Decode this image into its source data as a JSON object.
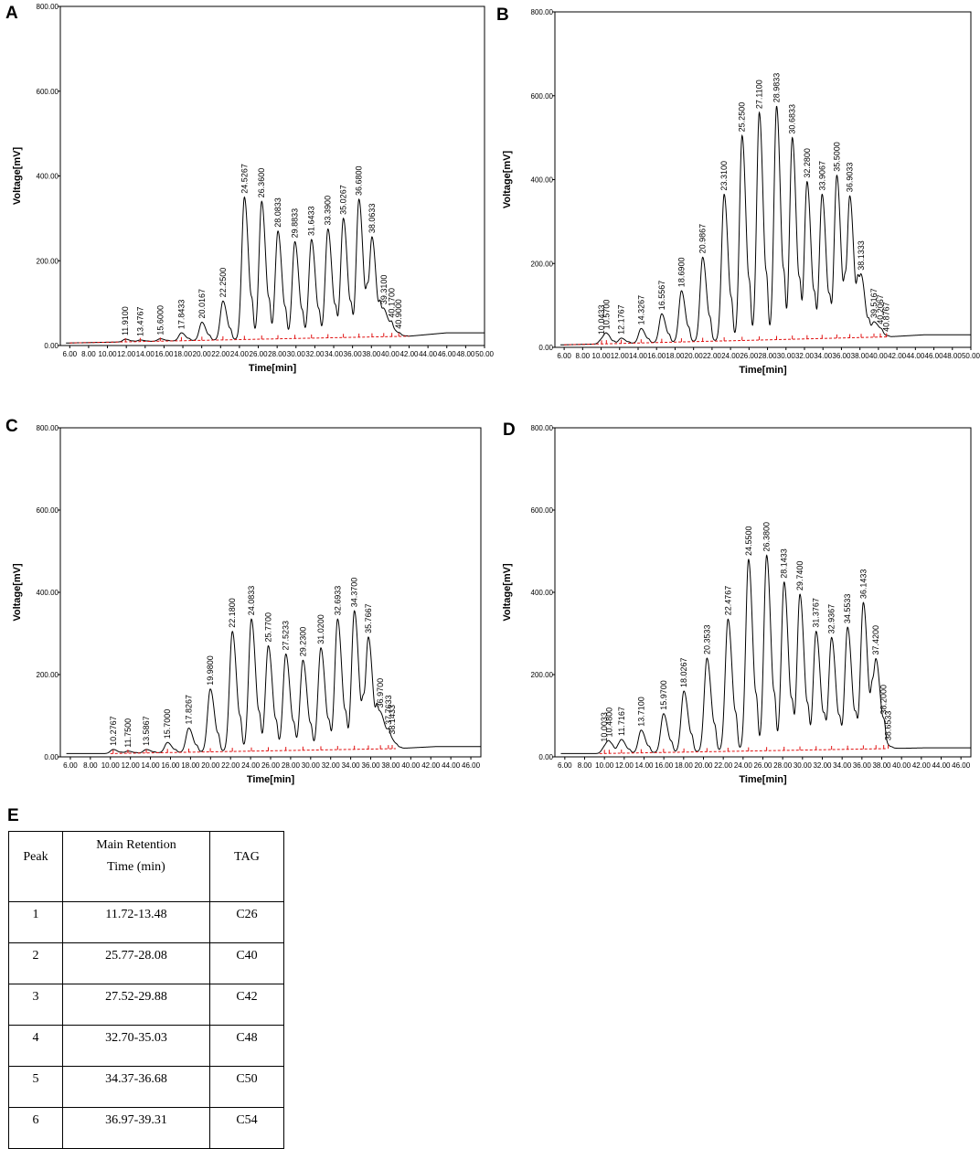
{
  "panels": [
    {
      "letter": "A"
    },
    {
      "letter": "B"
    },
    {
      "letter": "C"
    },
    {
      "letter": "D"
    }
  ],
  "chart_data": [
    {
      "type": "line",
      "panel": "A",
      "xlabel": "Time[min]",
      "ylabel": "Voltage[mV]",
      "xlim": [
        5,
        50
      ],
      "ylim": [
        0,
        800
      ],
      "xticks": [
        "6.00",
        "8.00",
        "10.00",
        "12.00",
        "14.00",
        "16.00",
        "18.00",
        "20.00",
        "22.00",
        "24.00",
        "26.00",
        "28.00",
        "30.00",
        "32.00",
        "34.00",
        "36.00",
        "38.00",
        "40.00",
        "42.00",
        "44.00",
        "46.00",
        "48.00",
        "50.00"
      ],
      "xtick_values": [
        6,
        8,
        10,
        12,
        14,
        16,
        18,
        20,
        22,
        24,
        26,
        28,
        30,
        32,
        34,
        36,
        38,
        40,
        42,
        44,
        46,
        48,
        50
      ],
      "yticks": [
        "0.00",
        "200.00",
        "400.00",
        "600.00",
        "800.00"
      ],
      "ytick_values": [
        0,
        200,
        400,
        600,
        800
      ],
      "baseline": {
        "start": 6,
        "end": 42,
        "level_start": 6,
        "level_end": 22,
        "tail_level": 30
      },
      "peaks": [
        {
          "t": 11.91,
          "h": 15,
          "label": "11.9100"
        },
        {
          "t": 13.4767,
          "h": 13,
          "label": "13.4767"
        },
        {
          "t": 15.6,
          "h": 16,
          "label": "15.6000"
        },
        {
          "t": 17.8433,
          "h": 30,
          "label": "17.8433"
        },
        {
          "t": 20.0167,
          "h": 55,
          "label": "20.0167"
        },
        {
          "t": 22.25,
          "h": 105,
          "label": "22.2500"
        },
        {
          "t": 24.5267,
          "h": 350,
          "label": "24.5267"
        },
        {
          "t": 26.36,
          "h": 340,
          "label": "26.3600"
        },
        {
          "t": 28.0833,
          "h": 270,
          "label": "28.0833"
        },
        {
          "t": 29.8833,
          "h": 245,
          "label": "29.8833"
        },
        {
          "t": 31.6433,
          "h": 250,
          "label": "31.6433"
        },
        {
          "t": 33.39,
          "h": 275,
          "label": "33.3900"
        },
        {
          "t": 35.0267,
          "h": 300,
          "label": "35.0267"
        },
        {
          "t": 36.68,
          "h": 345,
          "label": "36.6800"
        },
        {
          "t": 38.0633,
          "h": 255,
          "label": "38.0633"
        },
        {
          "t": 39.31,
          "h": 85,
          "label": "39.3100"
        },
        {
          "t": 40.17,
          "h": 40,
          "label": "40.1700"
        },
        {
          "t": 40.9,
          "h": 25,
          "label": "40.9000"
        }
      ]
    },
    {
      "type": "line",
      "panel": "B",
      "xlabel": "Time[min]",
      "ylabel": "Voltage[mV]",
      "xlim": [
        5,
        50
      ],
      "ylim": [
        0,
        800
      ],
      "xticks": [
        "6.00",
        "8.00",
        "10.00",
        "12.00",
        "14.00",
        "16.00",
        "18.00",
        "20.00",
        "22.00",
        "24.00",
        "26.00",
        "28.00",
        "30.00",
        "32.00",
        "34.00",
        "36.00",
        "38.00",
        "40.00",
        "42.00",
        "44.00",
        "46.00",
        "48.00",
        "50.00"
      ],
      "xtick_values": [
        6,
        8,
        10,
        12,
        14,
        16,
        18,
        20,
        22,
        24,
        26,
        28,
        30,
        32,
        34,
        36,
        38,
        40,
        42,
        44,
        46,
        48,
        50
      ],
      "yticks": [
        "0.00",
        "200.00",
        "400.00",
        "600.00",
        "800.00"
      ],
      "ytick_values": [
        0,
        200,
        400,
        600,
        800
      ],
      "baseline": {
        "start": 6,
        "end": 41,
        "level_start": 6,
        "level_end": 25,
        "tail_level": 30
      },
      "peaks": [
        {
          "t": 10.0433,
          "h": 18,
          "label": "10.0433"
        },
        {
          "t": 10.57,
          "h": 30,
          "label": "10.5700"
        },
        {
          "t": 12.1767,
          "h": 22,
          "label": "12.1767"
        },
        {
          "t": 14.3267,
          "h": 45,
          "label": "14.3267"
        },
        {
          "t": 16.5567,
          "h": 80,
          "label": "16.5567"
        },
        {
          "t": 18.69,
          "h": 135,
          "label": "18.6900"
        },
        {
          "t": 20.9867,
          "h": 215,
          "label": "20.9867"
        },
        {
          "t": 23.31,
          "h": 365,
          "label": "23.3100"
        },
        {
          "t": 25.25,
          "h": 505,
          "label": "25.2500"
        },
        {
          "t": 27.11,
          "h": 560,
          "label": "27.1100"
        },
        {
          "t": 28.9833,
          "h": 575,
          "label": "28.9833"
        },
        {
          "t": 30.6833,
          "h": 500,
          "label": "30.6833"
        },
        {
          "t": 32.28,
          "h": 395,
          "label": "32.2800"
        },
        {
          "t": 33.9067,
          "h": 365,
          "label": "33.9067"
        },
        {
          "t": 35.5,
          "h": 410,
          "label": "35.5000"
        },
        {
          "t": 36.9033,
          "h": 360,
          "label": "36.9033"
        },
        {
          "t": 38.1333,
          "h": 170,
          "label": "38.1333"
        },
        {
          "t": 39.5167,
          "h": 60,
          "label": "39.5167"
        },
        {
          "t": 40.2067,
          "h": 35,
          "label": "40.2067"
        },
        {
          "t": 40.8767,
          "h": 25,
          "label": "40.8767"
        }
      ]
    },
    {
      "type": "line",
      "panel": "C",
      "xlabel": "Time[min]",
      "ylabel": "Voltage[mV]",
      "xlim": [
        5,
        47
      ],
      "ylim": [
        0,
        800
      ],
      "xticks": [
        "6.00",
        "8.00",
        "10.00",
        "12.00",
        "14.00",
        "16.00",
        "18.00",
        "20.00",
        "22.00",
        "24.00",
        "26.00",
        "28.00",
        "30.00",
        "32.00",
        "34.00",
        "36.00",
        "38.00",
        "40.00",
        "42.00",
        "44.00",
        "46.00"
      ],
      "xtick_values": [
        6,
        8,
        10,
        12,
        14,
        16,
        18,
        20,
        22,
        24,
        26,
        28,
        30,
        32,
        34,
        36,
        38,
        40,
        42,
        44,
        46
      ],
      "yticks": [
        "0.00",
        "200.00",
        "400.00",
        "600.00",
        "800.00"
      ],
      "ytick_values": [
        0,
        200,
        400,
        600,
        800
      ],
      "baseline": {
        "start": 10,
        "end": 38.5,
        "level_start": 8,
        "level_end": 20,
        "tail_level": 25
      },
      "peaks": [
        {
          "t": 10.2767,
          "h": 18,
          "label": "10.2767"
        },
        {
          "t": 11.75,
          "h": 14,
          "label": "11.7500"
        },
        {
          "t": 13.5867,
          "h": 18,
          "label": "13.5867"
        },
        {
          "t": 15.7,
          "h": 35,
          "label": "15.7000"
        },
        {
          "t": 17.8267,
          "h": 70,
          "label": "17.8267"
        },
        {
          "t": 19.98,
          "h": 165,
          "label": "19.9800"
        },
        {
          "t": 22.18,
          "h": 305,
          "label": "22.1800"
        },
        {
          "t": 24.0833,
          "h": 335,
          "label": "24.0833"
        },
        {
          "t": 25.77,
          "h": 270,
          "label": "25.7700"
        },
        {
          "t": 27.5233,
          "h": 250,
          "label": "27.5233"
        },
        {
          "t": 29.23,
          "h": 235,
          "label": "29.2300"
        },
        {
          "t": 31.02,
          "h": 265,
          "label": "31.0200"
        },
        {
          "t": 32.6933,
          "h": 335,
          "label": "32.6933"
        },
        {
          "t": 34.37,
          "h": 355,
          "label": "34.3700"
        },
        {
          "t": 35.7667,
          "h": 290,
          "label": "35.7667"
        },
        {
          "t": 36.97,
          "h": 105,
          "label": "36.9700"
        },
        {
          "t": 37.7633,
          "h": 40,
          "label": "37.7633"
        },
        {
          "t": 38.1433,
          "h": 30,
          "label": "38.1433"
        }
      ]
    },
    {
      "type": "line",
      "panel": "D",
      "xlabel": "Time[min]",
      "ylabel": "Voltage[mV]",
      "xlim": [
        5,
        47
      ],
      "ylim": [
        0,
        800
      ],
      "xticks": [
        "6.00",
        "8.00",
        "10.00",
        "12.00",
        "14.00",
        "16.00",
        "18.00",
        "20.00",
        "22.00",
        "24.00",
        "26.00",
        "28.00",
        "30.00",
        "32.00",
        "34.00",
        "36.00",
        "38.00",
        "40.00",
        "42.00",
        "44.00",
        "46.00"
      ],
      "xtick_values": [
        6,
        8,
        10,
        12,
        14,
        16,
        18,
        20,
        22,
        24,
        26,
        28,
        30,
        32,
        34,
        36,
        38,
        40,
        42,
        44,
        46
      ],
      "yticks": [
        "0.00",
        "200.00",
        "400.00",
        "600.00",
        "800.00"
      ],
      "ytick_values": [
        0,
        200,
        400,
        600,
        800
      ],
      "baseline": {
        "start": 9.5,
        "end": 38.5,
        "level_start": 8,
        "level_end": 20,
        "tail_level": 22
      },
      "peaks": [
        {
          "t": 10.0033,
          "h": 22,
          "label": "10.0033"
        },
        {
          "t": 10.48,
          "h": 32,
          "label": "10.4800"
        },
        {
          "t": 11.7167,
          "h": 42,
          "label": "11.7167"
        },
        {
          "t": 13.71,
          "h": 65,
          "label": "13.7100"
        },
        {
          "t": 15.97,
          "h": 105,
          "label": "15.9700"
        },
        {
          "t": 18.0267,
          "h": 160,
          "label": "18.0267"
        },
        {
          "t": 20.3533,
          "h": 240,
          "label": "20.3533"
        },
        {
          "t": 22.4767,
          "h": 335,
          "label": "22.4767"
        },
        {
          "t": 24.55,
          "h": 480,
          "label": "24.5500"
        },
        {
          "t": 26.38,
          "h": 490,
          "label": "26.3800"
        },
        {
          "t": 28.1433,
          "h": 425,
          "label": "28.1433"
        },
        {
          "t": 29.74,
          "h": 395,
          "label": "29.7400"
        },
        {
          "t": 31.3767,
          "h": 305,
          "label": "31.3767"
        },
        {
          "t": 32.9367,
          "h": 290,
          "label": "32.9367"
        },
        {
          "t": 34.5533,
          "h": 315,
          "label": "34.5533"
        },
        {
          "t": 36.1433,
          "h": 375,
          "label": "36.1433"
        },
        {
          "t": 37.42,
          "h": 235,
          "label": "37.4200"
        },
        {
          "t": 38.2,
          "h": 30,
          "label": "38.2000"
        },
        {
          "t": 38.6533,
          "h": 22,
          "label": "38.6533"
        }
      ]
    },
    {
      "type": "table",
      "panel": "E",
      "headers": [
        "Peak",
        "Main Retention Time (min)",
        "TAG"
      ],
      "header_rt_lines": [
        "Main Retention",
        "Time (min)"
      ],
      "rows": [
        [
          "1",
          "11.72-13.48",
          "C26"
        ],
        [
          "2",
          "25.77-28.08",
          "C40"
        ],
        [
          "3",
          "27.52-29.88",
          "C42"
        ],
        [
          "4",
          "32.70-35.03",
          "C48"
        ],
        [
          "5",
          "34.37-36.68",
          "C50"
        ],
        [
          "6",
          "36.97-39.31",
          "C54"
        ]
      ]
    }
  ],
  "table_letter": "E",
  "colors": {
    "trace": "#000000",
    "baseline": "#e01010",
    "frame": "#000000"
  }
}
